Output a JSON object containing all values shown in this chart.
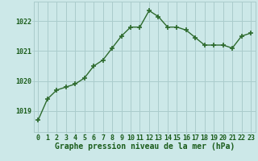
{
  "x": [
    0,
    1,
    2,
    3,
    4,
    5,
    6,
    7,
    8,
    9,
    10,
    11,
    12,
    13,
    14,
    15,
    16,
    17,
    18,
    19,
    20,
    21,
    22,
    23
  ],
  "y": [
    1018.7,
    1019.4,
    1019.7,
    1019.8,
    1019.9,
    1020.1,
    1020.5,
    1020.7,
    1021.1,
    1021.5,
    1021.8,
    1021.8,
    1022.35,
    1022.15,
    1021.8,
    1021.8,
    1021.7,
    1021.45,
    1021.2,
    1021.2,
    1021.2,
    1021.1,
    1021.5,
    1021.6
  ],
  "line_color": "#2d6a2d",
  "marker": "+",
  "marker_size": 4,
  "marker_lw": 1.2,
  "line_width": 1.0,
  "bg_color": "#cce8e8",
  "grid_color": "#aacccc",
  "xlabel": "Graphe pression niveau de la mer (hPa)",
  "xlabel_color": "#1a5c1a",
  "xlabel_fontsize": 7,
  "tick_label_color": "#1a5c1a",
  "tick_fontsize": 6,
  "yticks": [
    1019,
    1020,
    1021,
    1022
  ],
  "ylim": [
    1018.3,
    1022.65
  ],
  "xlim": [
    -0.5,
    23.5
  ],
  "xticks": [
    0,
    1,
    2,
    3,
    4,
    5,
    6,
    7,
    8,
    9,
    10,
    11,
    12,
    13,
    14,
    15,
    16,
    17,
    18,
    19,
    20,
    21,
    22,
    23
  ]
}
